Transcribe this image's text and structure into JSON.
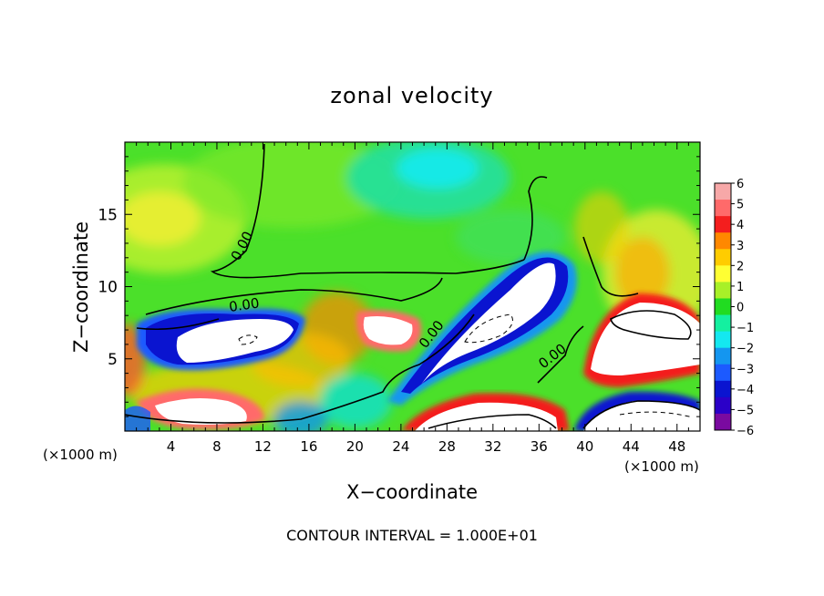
{
  "chart_data": {
    "type": "heatmap",
    "title": "zonal velocity",
    "xlabel": "X−coordinate",
    "ylabel": "Z−coordinate",
    "x_units_left": "(×1000 m)",
    "x_units_right": "(×1000 m)",
    "xlim": [
      0,
      50
    ],
    "ylim": [
      0,
      20
    ],
    "x_ticks": [
      4,
      8,
      12,
      16,
      20,
      24,
      28,
      32,
      36,
      40,
      44,
      48
    ],
    "x_tick_labels": [
      "4",
      "8",
      "12",
      "16",
      "20",
      "24",
      "28",
      "32",
      "36",
      "40",
      "44",
      "48"
    ],
    "y_ticks": [
      5,
      10,
      15
    ],
    "y_tick_labels": [
      "5",
      "10",
      "15"
    ],
    "colorbar": {
      "range": [
        -6,
        6
      ],
      "tick_labels": [
        "6",
        "5",
        "4",
        "3",
        "2",
        "1",
        "0",
        "−1",
        "−2",
        "−3",
        "−4",
        "−5",
        "−6"
      ],
      "colors": [
        "#f7a8a8",
        "#ff6a6a",
        "#f41e1e",
        "#ff8800",
        "#ffcc00",
        "#ffff33",
        "#a8f028",
        "#21dc21",
        "#14f0a0",
        "#14e8f0",
        "#1496f0",
        "#1c5aff",
        "#0a14d0",
        "#2b00c8",
        "#7a0aa0"
      ]
    },
    "contour_label": "0.00",
    "footer": "CONTOUR INTERVAL = 1.000E+01",
    "grid": false,
    "legend": "right"
  }
}
